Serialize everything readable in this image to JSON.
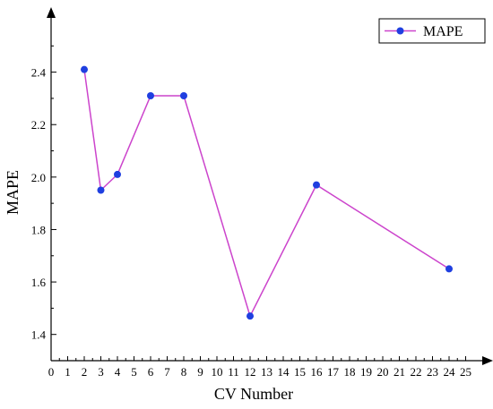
{
  "chart_data": {
    "type": "line",
    "xlabel": "CV Number",
    "ylabel": "MAPE",
    "xlim": [
      0,
      26
    ],
    "ylim": [
      1.3,
      2.6
    ],
    "x_ticks": [
      0,
      1,
      2,
      3,
      4,
      5,
      6,
      7,
      8,
      9,
      10,
      11,
      12,
      13,
      14,
      15,
      16,
      17,
      18,
      19,
      20,
      21,
      22,
      23,
      24,
      25
    ],
    "y_ticks": [
      1.4,
      1.6,
      1.8,
      2.0,
      2.2,
      2.4
    ],
    "y_tick_labels": [
      "1.4",
      "1.6",
      "1.8",
      "2.0",
      "2.2",
      "2.4"
    ],
    "legend_position": "top-right",
    "series": [
      {
        "name": "MAPE",
        "line_color": "#cc44cc",
        "marker_color": "#1f3fe0",
        "x": [
          2,
          3,
          4,
          6,
          8,
          12,
          16,
          24
        ],
        "y": [
          2.41,
          1.95,
          2.01,
          2.31,
          2.31,
          1.47,
          1.97,
          1.65
        ]
      }
    ]
  }
}
